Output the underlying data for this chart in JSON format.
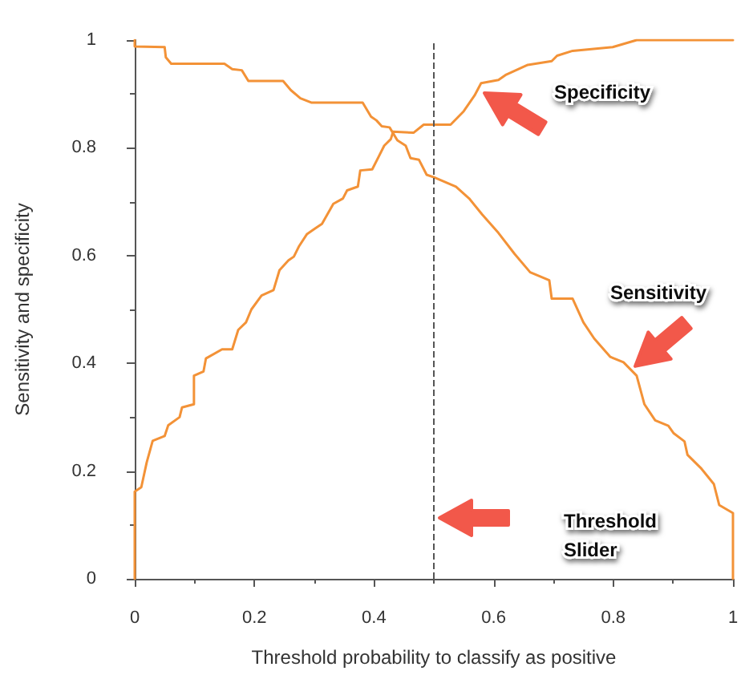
{
  "chart_data": {
    "type": "line",
    "xlabel": "Threshold probability to classify as positive",
    "ylabel": "Sensitivity and specificity",
    "xlim": [
      0,
      1
    ],
    "ylim": [
      0,
      1
    ],
    "xticks": [
      0,
      0.2,
      0.4,
      0.6,
      0.8,
      1
    ],
    "yticks": [
      0,
      0.2,
      0.4,
      0.6,
      0.8,
      1
    ],
    "grid": false,
    "legend": false,
    "marker": "none",
    "line_style": "solid",
    "series": [
      {
        "name": "Specificity",
        "color": "#f39237",
        "x": [
          0,
          0,
          0.011,
          0.02,
          0.03,
          0.05,
          0.056,
          0.075,
          0.079,
          0.099,
          0.099,
          0.115,
          0.119,
          0.146,
          0.163,
          0.173,
          0.186,
          0.195,
          0.212,
          0.232,
          0.242,
          0.257,
          0.266,
          0.275,
          0.288,
          0.301,
          0.313,
          0.332,
          0.348,
          0.355,
          0.373,
          0.377,
          0.397,
          0.408,
          0.417,
          0.428,
          0.432,
          0.466,
          0.483,
          0.501,
          0.528,
          0.55,
          0.568,
          0.579,
          0.608,
          0.621,
          0.657,
          0.697,
          0.706,
          0.732,
          0.799,
          0.839,
          1
        ],
        "values": [
          0,
          0.162,
          0.17,
          0.216,
          0.256,
          0.265,
          0.285,
          0.3,
          0.318,
          0.324,
          0.377,
          0.385,
          0.409,
          0.426,
          0.426,
          0.462,
          0.476,
          0.5,
          0.526,
          0.536,
          0.573,
          0.591,
          0.598,
          0.618,
          0.64,
          0.65,
          0.659,
          0.696,
          0.706,
          0.721,
          0.728,
          0.758,
          0.76,
          0.784,
          0.804,
          0.816,
          0.83,
          0.828,
          0.843,
          0.843,
          0.843,
          0.868,
          0.897,
          0.92,
          0.926,
          0.936,
          0.954,
          0.961,
          0.971,
          0.98,
          0.987,
          1,
          1
        ]
      },
      {
        "name": "Sensitivity",
        "color": "#f39237",
        "x": [
          0,
          0,
          0.05,
          0.052,
          0.061,
          0.15,
          0.163,
          0.179,
          0.19,
          0.248,
          0.261,
          0.277,
          0.295,
          0.381,
          0.395,
          0.404,
          0.413,
          0.426,
          0.439,
          0.453,
          0.461,
          0.475,
          0.488,
          0.501,
          0.537,
          0.559,
          0.581,
          0.608,
          0.635,
          0.661,
          0.693,
          0.697,
          0.732,
          0.75,
          0.768,
          0.795,
          0.817,
          0.839,
          0.852,
          0.87,
          0.892,
          0.901,
          0.919,
          0.924,
          0.946,
          0.968,
          0.977,
          1,
          1
        ],
        "values": [
          1,
          0.988,
          0.987,
          0.968,
          0.956,
          0.956,
          0.946,
          0.944,
          0.924,
          0.924,
          0.907,
          0.892,
          0.884,
          0.884,
          0.858,
          0.851,
          0.84,
          0.838,
          0.814,
          0.804,
          0.781,
          0.778,
          0.75,
          0.745,
          0.728,
          0.706,
          0.676,
          0.642,
          0.603,
          0.569,
          0.554,
          0.52,
          0.52,
          0.476,
          0.446,
          0.412,
          0.402,
          0.377,
          0.324,
          0.294,
          0.284,
          0.27,
          0.255,
          0.23,
          0.206,
          0.176,
          0.137,
          0.122,
          0
        ]
      }
    ],
    "ref_lines": [
      {
        "axis": "x",
        "value": 0.5,
        "color": "#555555",
        "line_style": "dashed"
      }
    ],
    "annotations": [
      "Threshold Slider"
    ]
  }
}
